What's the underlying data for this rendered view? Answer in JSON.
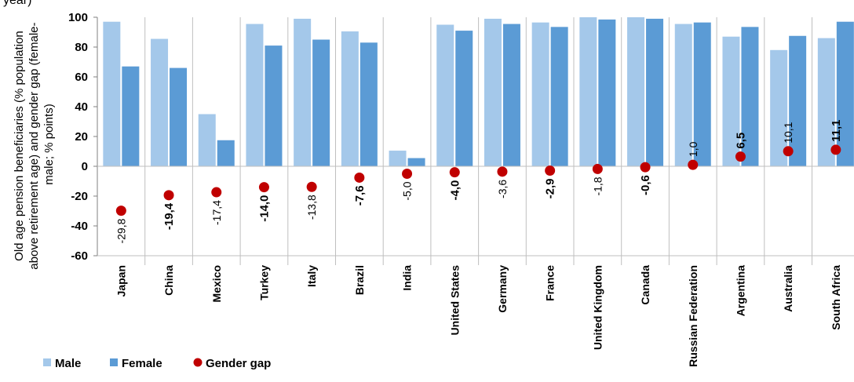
{
  "header": {
    "cut_text": "year)"
  },
  "chart_data": {
    "type": "bar",
    "ylabel": "Old age pension beneficiaries (% population above retirement age) and gender gap (female-male; % points)",
    "ylim": [
      -60,
      100
    ],
    "yticks": [
      -60,
      -40,
      -20,
      0,
      20,
      40,
      60,
      80,
      100
    ],
    "grid": false,
    "legend_position": "bottom-left",
    "categories": [
      "Japan",
      "China",
      "Mexico",
      "Turkey",
      "Italy",
      "Brazil",
      "India",
      "United States",
      "Germany",
      "France",
      "United Kingdom",
      "Canada",
      "Russian Federation",
      "Argentina",
      "Australia",
      "South Africa"
    ],
    "series": [
      {
        "name": "Male",
        "type": "bar",
        "color": "#a4c8ea",
        "values": [
          97,
          85.5,
          35,
          95.5,
          99,
          90.5,
          10.5,
          95,
          99,
          96.5,
          100,
          100,
          95.5,
          87,
          78,
          86
        ]
      },
      {
        "name": "Female",
        "type": "bar",
        "color": "#5b9bd5",
        "values": [
          67,
          66,
          17.5,
          81,
          85,
          83,
          5.5,
          91,
          95.5,
          93.5,
          98.5,
          99,
          96.5,
          93.5,
          87.5,
          97
        ]
      },
      {
        "name": "Gender gap",
        "type": "scatter",
        "color": "#c00000",
        "values": [
          -29.8,
          -19.4,
          -17.4,
          -14.0,
          -13.8,
          -7.6,
          -5.0,
          -4.0,
          -3.6,
          -2.9,
          -1.8,
          -0.6,
          1.0,
          6.5,
          10.1,
          11.1
        ]
      }
    ],
    "data_labels": [
      "-29,8",
      "-19,4",
      "-17,4",
      "-14,0",
      "-13,8",
      "-7,6",
      "-5,0",
      "-4,0",
      "-3,6",
      "-2,9",
      "-1,8",
      "-0,6",
      "1,0",
      "6,5",
      "10,1",
      "11,1"
    ],
    "data_labels_bold": [
      false,
      true,
      false,
      true,
      false,
      true,
      false,
      true,
      false,
      true,
      false,
      true,
      false,
      true,
      false,
      true
    ]
  }
}
